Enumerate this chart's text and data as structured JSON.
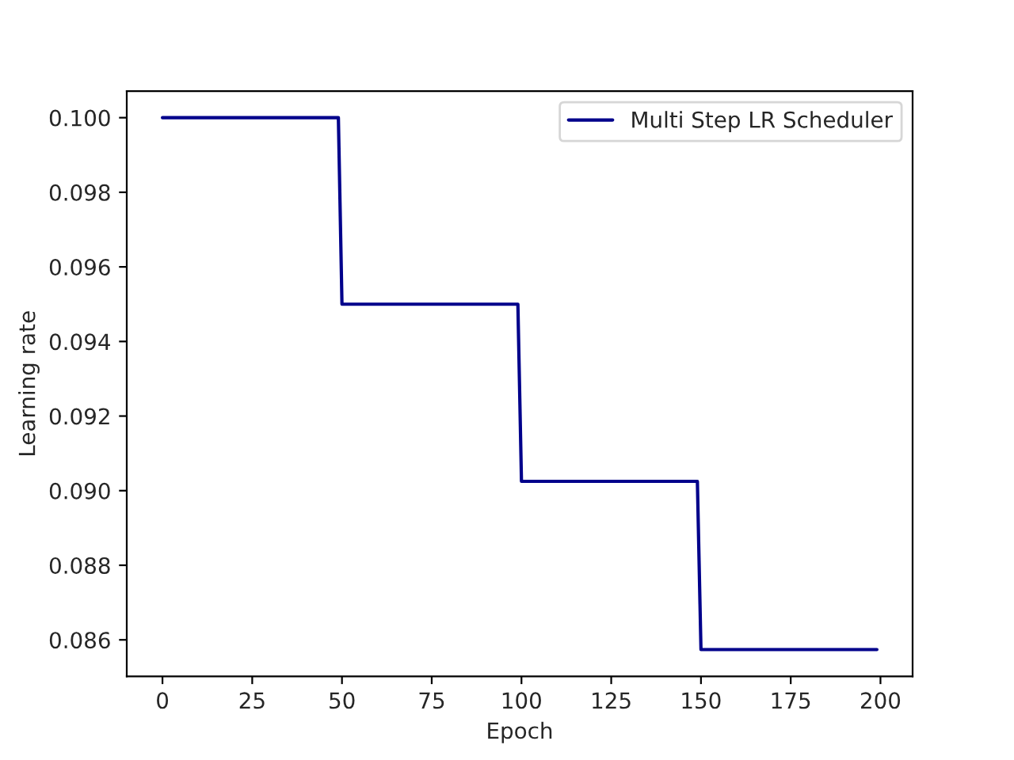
{
  "chart_data": {
    "type": "line",
    "xlabel": "Epoch",
    "ylabel": "Learning rate",
    "series": [
      {
        "name": "Multi Step LR Scheduler",
        "color": "#00008b",
        "x": [
          0,
          49,
          50,
          99,
          100,
          149,
          150,
          199
        ],
        "values": [
          0.1,
          0.1,
          0.095,
          0.095,
          0.09025,
          0.09025,
          0.08574,
          0.08574
        ]
      }
    ],
    "xlim": [
      -9.95,
      208.95
    ],
    "xticks": [
      0,
      25,
      50,
      75,
      100,
      125,
      150,
      175,
      200
    ],
    "ylim": [
      0.08502,
      0.10071
    ],
    "yticks": [
      {
        "value": 0.086,
        "label": "0.086"
      },
      {
        "value": 0.088,
        "label": "0.088"
      },
      {
        "value": 0.09,
        "label": "0.090"
      },
      {
        "value": 0.092,
        "label": "0.092"
      },
      {
        "value": 0.094,
        "label": "0.094"
      },
      {
        "value": 0.096,
        "label": "0.096"
      },
      {
        "value": 0.098,
        "label": "0.098"
      },
      {
        "value": 0.1,
        "label": "0.100"
      }
    ],
    "legend": "top right"
  }
}
